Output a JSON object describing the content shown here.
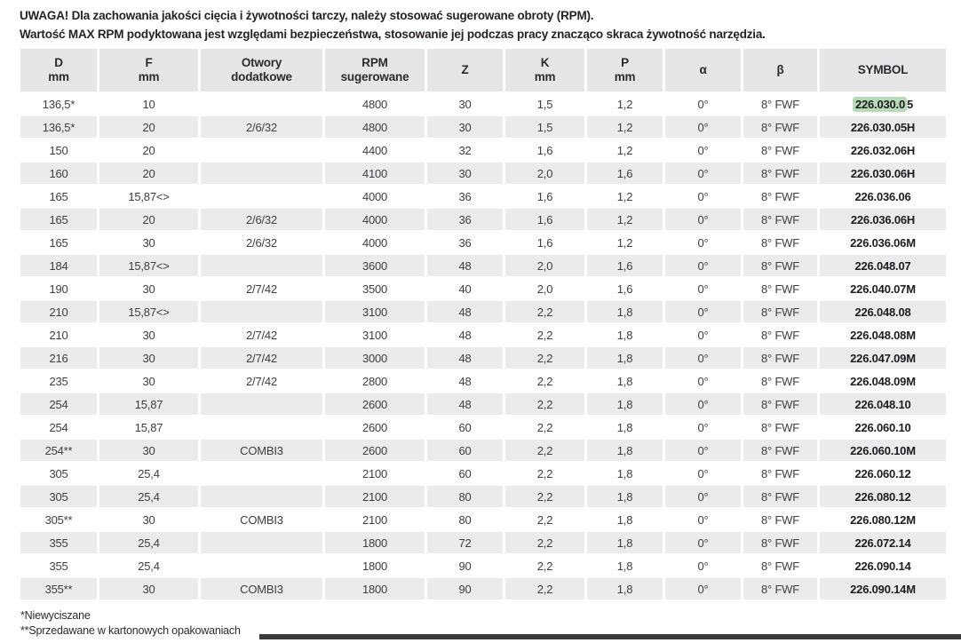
{
  "notes": {
    "line1": "UWAGA! Dla zachowania jakości cięcia i żywotności tarczy, należy stosować sugerowane obroty (RPM).",
    "line2": "Wartość MAX RPM podyktowana jest względami bezpieczeństwa, stosowanie jej podczas pracy znacząco skraca żywotność narzędzia."
  },
  "table": {
    "columns": [
      {
        "key": "d",
        "line1": "D",
        "line2": "mm"
      },
      {
        "key": "f",
        "line1": "F",
        "line2": "mm"
      },
      {
        "key": "otwory",
        "line1": "Otwory",
        "line2": "dodatkowe"
      },
      {
        "key": "rpm",
        "line1": "RPM",
        "line2": "sugerowane"
      },
      {
        "key": "z",
        "line1": "Z",
        "line2": ""
      },
      {
        "key": "k",
        "line1": "K",
        "line2": "mm"
      },
      {
        "key": "p",
        "line1": "P",
        "line2": "mm"
      },
      {
        "key": "alpha",
        "line1": "α",
        "line2": ""
      },
      {
        "key": "beta",
        "line1": "β",
        "line2": ""
      },
      {
        "key": "symbol",
        "line1": "SYMBOL",
        "line2": ""
      }
    ],
    "highlight": {
      "row": 0,
      "prefix": "226.030.0",
      "suffix": "5",
      "color": "#b9dab9"
    },
    "rows": [
      [
        "136,5*",
        "10",
        "",
        "4800",
        "30",
        "1,5",
        "1,2",
        "0°",
        "8° FWF",
        "226.030.05"
      ],
      [
        "136,5*",
        "20",
        "2/6/32",
        "4800",
        "30",
        "1,5",
        "1,2",
        "0°",
        "8° FWF",
        "226.030.05H"
      ],
      [
        "150",
        "20",
        "",
        "4400",
        "32",
        "1,6",
        "1,2",
        "0°",
        "8° FWF",
        "226.032.06H"
      ],
      [
        "160",
        "20",
        "",
        "4100",
        "30",
        "2,0",
        "1,6",
        "0°",
        "8° FWF",
        "226.030.06H"
      ],
      [
        "165",
        "15,87<>",
        "",
        "4000",
        "36",
        "1,6",
        "1,2",
        "0°",
        "8° FWF",
        "226.036.06"
      ],
      [
        "165",
        "20",
        "2/6/32",
        "4000",
        "36",
        "1,6",
        "1,2",
        "0°",
        "8° FWF",
        "226.036.06H"
      ],
      [
        "165",
        "30",
        "2/6/32",
        "4000",
        "36",
        "1,6",
        "1,2",
        "0°",
        "8° FWF",
        "226.036.06M"
      ],
      [
        "184",
        "15,87<>",
        "",
        "3600",
        "48",
        "2,0",
        "1,6",
        "0°",
        "8° FWF",
        "226.048.07"
      ],
      [
        "190",
        "30",
        "2/7/42",
        "3500",
        "40",
        "2,0",
        "1,6",
        "0°",
        "8° FWF",
        "226.040.07M"
      ],
      [
        "210",
        "15,87<>",
        "",
        "3100",
        "48",
        "2,2",
        "1,8",
        "0°",
        "8° FWF",
        "226.048.08"
      ],
      [
        "210",
        "30",
        "2/7/42",
        "3100",
        "48",
        "2,2",
        "1,8",
        "0°",
        "8° FWF",
        "226.048.08M"
      ],
      [
        "216",
        "30",
        "2/7/42",
        "3000",
        "48",
        "2,2",
        "1,8",
        "0°",
        "8° FWF",
        "226.047.09M"
      ],
      [
        "235",
        "30",
        "2/7/42",
        "2800",
        "48",
        "2,2",
        "1,8",
        "0°",
        "8° FWF",
        "226.048.09M"
      ],
      [
        "254",
        "15,87",
        "",
        "2600",
        "48",
        "2,2",
        "1,8",
        "0°",
        "8° FWF",
        "226.048.10"
      ],
      [
        "254",
        "15,87",
        "",
        "2600",
        "60",
        "2,2",
        "1,8",
        "0°",
        "8° FWF",
        "226.060.10"
      ],
      [
        "254**",
        "30",
        "COMBI3",
        "2600",
        "60",
        "2,2",
        "1,8",
        "0°",
        "8° FWF",
        "226.060.10M"
      ],
      [
        "305",
        "25,4",
        "",
        "2100",
        "60",
        "2,2",
        "1,8",
        "0°",
        "8° FWF",
        "226.060.12"
      ],
      [
        "305",
        "25,4",
        "",
        "2100",
        "80",
        "2,2",
        "1,8",
        "0°",
        "8° FWF",
        "226.080.12"
      ],
      [
        "305**",
        "30",
        "COMBI3",
        "2100",
        "80",
        "2,2",
        "1,8",
        "0°",
        "8° FWF",
        "226.080.12M"
      ],
      [
        "355",
        "25,4",
        "",
        "1800",
        "72",
        "2,2",
        "1,8",
        "0°",
        "8° FWF",
        "226.072.14"
      ],
      [
        "355",
        "25,4",
        "",
        "1800",
        "90",
        "2,2",
        "1,8",
        "0°",
        "8° FWF",
        "226.090.14"
      ],
      [
        "355**",
        "30",
        "COMBI3",
        "1800",
        "90",
        "2,2",
        "1,8",
        "0°",
        "8° FWF",
        "226.090.14M"
      ]
    ]
  },
  "footnotes": {
    "note1": "*Niewyciszane",
    "note2": "**Sprzedawane w kartonowych opakowaniach"
  }
}
